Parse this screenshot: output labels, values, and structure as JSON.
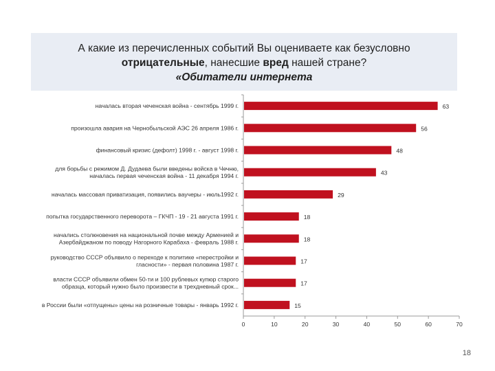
{
  "title": {
    "line1": "А какие из перечисленных событий Вы оцениваете как безусловно",
    "line2_bold": "отрицательные",
    "line2_mid": ", нанесшие ",
    "line2_bold2": "вред",
    "line2_end": " нашей стране?",
    "line3": "«Обитатели интернета"
  },
  "page_number": "18",
  "colors": {
    "bar": "#c0111f",
    "axis": "#999999",
    "title_bg": "#e9edf4"
  },
  "chart_data": {
    "type": "bar",
    "orientation": "horizontal",
    "categories": [
      [
        "началась вторая чеченская война - сентябрь 1999 г."
      ],
      [
        "произошла авария на Чернобыльской АЭС 26 апреля 1986 г."
      ],
      [
        "финансовый кризис (дефолт) 1998 г. - август 1998 г."
      ],
      [
        "для борьбы с режимом Д. Дудаева были введены войска в Чечню,",
        "началась первая чеченская война - 11 декабря 1994 г."
      ],
      [
        "началась массовая приватизация, появились ваучеры - июль1992 г."
      ],
      [
        "попытка государственного переворота – ГКЧП - 19 - 21 августа 1991 г."
      ],
      [
        "начались столкновения на национальной почве между Арменией и",
        "Азербайджаном по поводу Нагорного Карабаха - февраль 1988 г."
      ],
      [
        "руководство СССР объявило о переходе к политике «перестройки и",
        "гласности» - первая половина 1987 г."
      ],
      [
        "власти СССР объявили обмен 50-ти и 100 рублевых купюр старого",
        "образца, который нужно было произвести в трехдневный срок..."
      ],
      [
        "в России были «отпущены» цены на розничные товары - январь 1992 г."
      ]
    ],
    "values": [
      63,
      56,
      48,
      43,
      29,
      18,
      18,
      17,
      17,
      15
    ],
    "value_labels": [
      "63",
      "56",
      "48",
      "43",
      "29",
      "18",
      "18",
      "17",
      "17",
      "15"
    ],
    "xlim": [
      0,
      70
    ],
    "ticks": [
      "0",
      "10",
      "20",
      "30",
      "40",
      "50",
      "60",
      "70"
    ],
    "tick_values": [
      0,
      10,
      20,
      30,
      40,
      50,
      60,
      70
    ],
    "grid": false,
    "legend": "none"
  }
}
